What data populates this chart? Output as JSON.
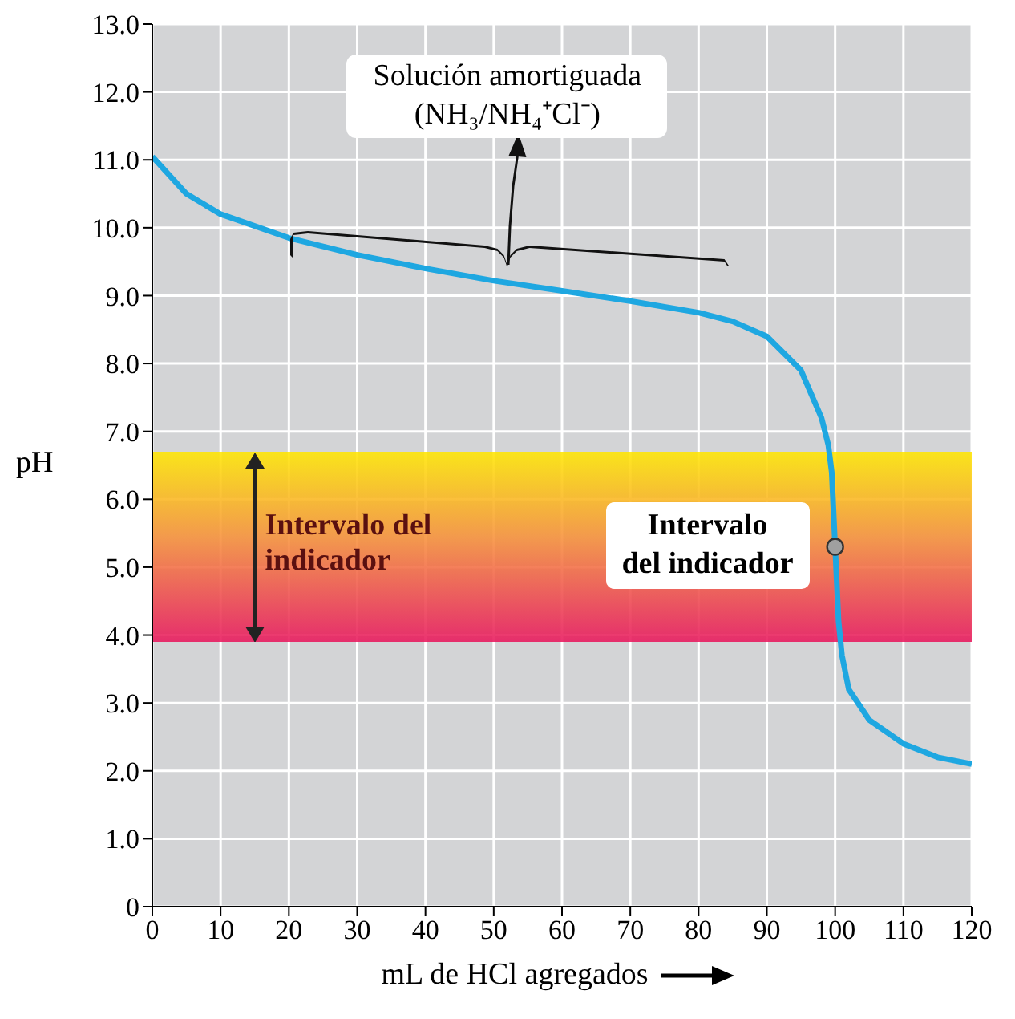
{
  "chart_data": {
    "type": "line",
    "xlabel": "mL de HCl agregados",
    "ylabel": "pH",
    "xlim": [
      0,
      120
    ],
    "xticks": [
      0,
      10,
      20,
      30,
      40,
      50,
      60,
      70,
      80,
      90,
      100,
      110,
      120
    ],
    "ylim": [
      0,
      13
    ],
    "yticks": [
      0,
      {
        "value": 1,
        "label": "1.0"
      },
      {
        "value": 2,
        "label": "2.0"
      },
      {
        "value": 3,
        "label": "3.0"
      },
      {
        "value": 4,
        "label": "4.0"
      },
      {
        "value": 5,
        "label": "5.0"
      },
      {
        "value": 6,
        "label": "6.0"
      },
      {
        "value": 7,
        "label": "7.0"
      },
      {
        "value": 8,
        "label": "8.0"
      },
      {
        "value": 9,
        "label": "9.0"
      },
      {
        "value": 10,
        "label": "10.0"
      },
      {
        "value": 11,
        "label": "11.0"
      },
      {
        "value": 12,
        "label": "12.0"
      },
      {
        "value": 13,
        "label": "13.0"
      }
    ],
    "grid": true,
    "series": [
      {
        "color": "#1ea7e1",
        "x": [
          0,
          5,
          10,
          20,
          30,
          40,
          50,
          60,
          70,
          80,
          85,
          90,
          95,
          98,
          99,
          99.5,
          100,
          100.5,
          101,
          102,
          105,
          110,
          115,
          120
        ],
        "values": [
          11.05,
          10.5,
          10.2,
          9.85,
          9.6,
          9.4,
          9.22,
          9.07,
          8.92,
          8.75,
          8.62,
          8.4,
          7.9,
          7.2,
          6.8,
          6.4,
          5.3,
          4.2,
          3.7,
          3.2,
          2.75,
          2.4,
          2.2,
          2.1
        ]
      },
      {
        "type": "scatter",
        "color": "#a0a0a0",
        "x": [
          100
        ],
        "values": [
          5.3
        ]
      }
    ],
    "bands": [
      {
        "axis": "y",
        "from": 3.9,
        "to": 6.7,
        "label": "Intervalo del indicador",
        "color": "#e8175d"
      }
    ],
    "annotations": [
      "Solución amortiguada\n(NH₃/NH₄⁺Cl⁻)",
      {
        "text": "Intervalo\ndel indicador",
        "x": 100,
        "y": 5.3
      }
    ]
  }
}
